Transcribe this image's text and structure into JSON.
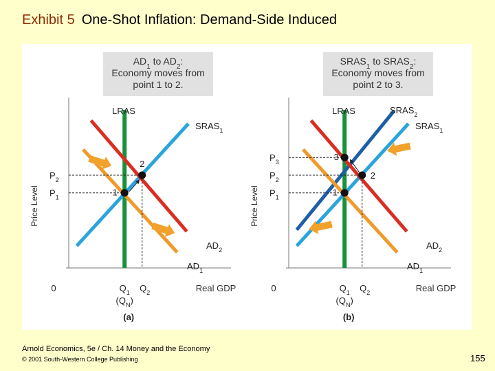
{
  "slide": {
    "exhibit": "Exhibit 5",
    "title": "One-Shot Inflation: Demand-Side Induced",
    "footer_line1": "Arnold Economics, 5e / Ch. 14 Money and the Economy",
    "footer_line2": "© 2001 South-Western College Publishing",
    "page_number": "155"
  },
  "colors": {
    "lras": "#17913a",
    "sras1": "#2aa4dc",
    "sras2": "#1d5fa8",
    "ad1": "#ef9a2b",
    "ad2": "#dc2d22",
    "arrow": "#f2a12b",
    "box": "#e1e1e1"
  },
  "chart_data": [
    {
      "type": "line",
      "panel_label": "(a)",
      "ylabel": "Price Level",
      "xlabel": "Real GDP",
      "origin_label": "0",
      "box_line1": "AD1 to AD2:",
      "box_line2": "Economy moves from",
      "box_line3": "point 1 to 2.",
      "xlim": [
        0,
        10
      ],
      "ylim": [
        0,
        10
      ],
      "series": [
        {
          "name": "LRAS",
          "kind": "vertical",
          "x": 3.5
        },
        {
          "name": "SRAS1",
          "points": [
            [
              0.5,
              1.2
            ],
            [
              7.5,
              8.8
            ]
          ]
        },
        {
          "name": "AD1",
          "points": [
            [
              0.9,
              7.2
            ],
            [
              6.8,
              0.8
            ]
          ]
        },
        {
          "name": "AD2",
          "points": [
            [
              1.4,
              9.0
            ],
            [
              7.4,
              2.1
            ]
          ]
        }
      ],
      "line_labels": [
        "LRAS",
        "SRAS1",
        "AD1",
        "AD2"
      ],
      "points": [
        {
          "label": "1",
          "x": 3.5,
          "y": 4.5
        },
        {
          "label": "2",
          "x": 4.6,
          "y": 5.6
        }
      ],
      "y_ticks": [
        "P2",
        "P1"
      ],
      "x_ticks": [
        "Q1",
        "(QN)",
        "Q2"
      ]
    },
    {
      "type": "line",
      "panel_label": "(b)",
      "ylabel": "Price Level",
      "xlabel": "Real GDP",
      "origin_label": "0",
      "box_line1": "SRAS1 to SRAS2:",
      "box_line2": "Economy moves from",
      "box_line3": "point 2 to 3.",
      "xlim": [
        0,
        10
      ],
      "ylim": [
        0,
        10
      ],
      "series": [
        {
          "name": "LRAS",
          "kind": "vertical",
          "x": 3.5
        },
        {
          "name": "SRAS1",
          "points": [
            [
              0.5,
              1.2
            ],
            [
              7.5,
              8.8
            ]
          ]
        },
        {
          "name": "SRAS2",
          "points": [
            [
              0.5,
              2.2
            ],
            [
              6.6,
              9.6
            ]
          ]
        },
        {
          "name": "AD1",
          "points": [
            [
              0.9,
              7.2
            ],
            [
              6.8,
              0.8
            ]
          ]
        },
        {
          "name": "AD2",
          "points": [
            [
              1.4,
              9.0
            ],
            [
              7.4,
              2.1
            ]
          ]
        }
      ],
      "line_labels": [
        "LRAS",
        "SRAS2",
        "SRAS1",
        "AD1",
        "AD2"
      ],
      "points": [
        {
          "label": "1",
          "x": 3.5,
          "y": 4.5
        },
        {
          "label": "2",
          "x": 4.6,
          "y": 5.6
        },
        {
          "label": "3",
          "x": 3.5,
          "y": 6.7
        }
      ],
      "y_ticks": [
        "P3",
        "P2",
        "P1"
      ],
      "x_ticks": [
        "Q1",
        "(QN)",
        "Q2"
      ]
    }
  ]
}
